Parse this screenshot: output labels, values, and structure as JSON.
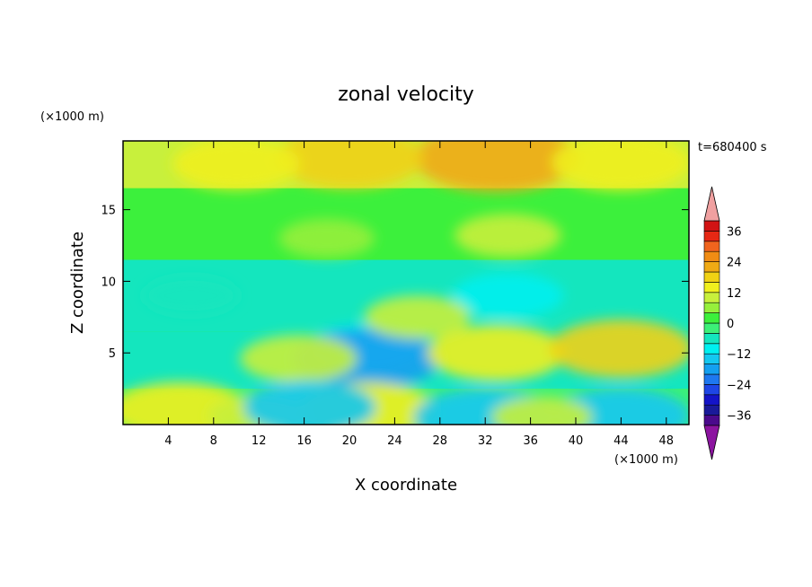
{
  "chart_data": {
    "type": "heatmap",
    "title": "zonal velocity",
    "xlabel": "X coordinate",
    "ylabel": "Z coordinate",
    "x_unit": "(×1000 m)",
    "y_unit": "(×1000 m)",
    "time_label": "t=680400 s",
    "xlim": [
      0,
      50
    ],
    "ylim": [
      0,
      19.8
    ],
    "x_ticks": [
      4,
      8,
      12,
      16,
      20,
      24,
      28,
      32,
      36,
      40,
      44,
      48
    ],
    "y_ticks": [
      5,
      10,
      15
    ],
    "colorbar": {
      "ticks": [
        36,
        24,
        12,
        0,
        -12,
        -24,
        -36
      ],
      "levels": [
        -40,
        -36,
        -32,
        -28,
        -24,
        -20,
        -16,
        -12,
        -8,
        -4,
        0,
        4,
        8,
        12,
        16,
        20,
        24,
        28,
        32,
        36,
        40
      ],
      "colors": [
        "#4b0a8c",
        "#1a1a9a",
        "#1414c8",
        "#1e46e6",
        "#1e78f0",
        "#14a0f0",
        "#14c8f0",
        "#00f0f0",
        "#14e6be",
        "#3cf078",
        "#3cf03c",
        "#96f03c",
        "#c8f03c",
        "#f0f01e",
        "#f0d214",
        "#f0aa14",
        "#f08c14",
        "#f0641e",
        "#e62814",
        "#d21414"
      ],
      "under_color": "#8c14a0",
      "over_color": "#f0a0a0"
    },
    "features": [
      {
        "x": 33,
        "y": 18.6,
        "value": 22
      },
      {
        "x": 20,
        "y": 18.6,
        "value": 17
      },
      {
        "x": 10,
        "y": 18.2,
        "value": 13
      },
      {
        "x": 44,
        "y": 18.3,
        "value": 15
      },
      {
        "x": 34,
        "y": 13.2,
        "value": 9
      },
      {
        "x": 18,
        "y": 13.0,
        "value": 7
      },
      {
        "x": 6,
        "y": 9.0,
        "value": -7
      },
      {
        "x": 21.5,
        "y": 5.5,
        "value": -10
      },
      {
        "x": 21.5,
        "y": 4.6,
        "value": -17
      },
      {
        "x": 34,
        "y": 9.0,
        "value": -10
      },
      {
        "x": 33,
        "y": 5.0,
        "value": 15
      },
      {
        "x": 44,
        "y": 5.3,
        "value": 16
      },
      {
        "x": 26,
        "y": 7.5,
        "value": 9
      },
      {
        "x": 15.5,
        "y": 4.6,
        "value": 11
      },
      {
        "x": 5,
        "y": 1.0,
        "value": 15
      },
      {
        "x": 21.5,
        "y": 1.0,
        "value": 15
      },
      {
        "x": 12,
        "y": 0.6,
        "value": 8
      },
      {
        "x": 32,
        "y": 0.5,
        "value": -16
      },
      {
        "x": 44,
        "y": 0.6,
        "value": -15
      },
      {
        "x": 16.5,
        "y": 1.2,
        "value": -14
      },
      {
        "x": 37,
        "y": 0.5,
        "value": 8
      }
    ]
  }
}
